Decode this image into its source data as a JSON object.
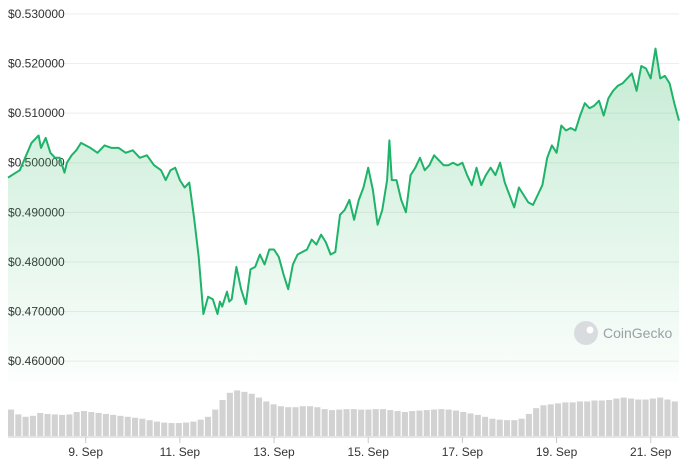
{
  "chart_data": {
    "type": "area",
    "title": "",
    "xlabel": "",
    "ylabel": "",
    "ylim": [
      0.456,
      0.532
    ],
    "grid": true,
    "y_ticks": [
      "$0.530000",
      "$0.520000",
      "$0.510000",
      "$0.500000",
      "$0.490000",
      "$0.480000",
      "$0.470000",
      "$0.460000"
    ],
    "y_tick_values": [
      0.53,
      0.52,
      0.51,
      0.5,
      0.49,
      0.48,
      0.47,
      0.46
    ],
    "x_ticks": [
      "9. Sep",
      "11. Sep",
      "13. Sep",
      "15. Sep",
      "17. Sep",
      "19. Sep",
      "21. Sep"
    ],
    "x_tick_days": [
      9,
      11,
      13,
      15,
      17,
      19,
      21
    ],
    "x_range_days": [
      7.35,
      21.6
    ],
    "series": [
      {
        "color": "#1fb36a",
        "x": [
          7.35,
          7.6,
          7.85,
          8.0,
          8.05,
          8.15,
          8.25,
          8.35,
          8.45,
          8.55,
          8.6,
          8.7,
          8.8,
          8.9,
          9.0,
          9.1,
          9.25,
          9.4,
          9.55,
          9.7,
          9.85,
          10.0,
          10.15,
          10.3,
          10.45,
          10.6,
          10.7,
          10.8,
          10.9,
          11.0,
          11.1,
          11.2,
          11.3,
          11.4,
          11.5,
          11.6,
          11.7,
          11.8,
          11.85,
          11.9,
          12.0,
          12.05,
          12.1,
          12.2,
          12.3,
          12.4,
          12.5,
          12.6,
          12.7,
          12.8,
          12.9,
          13.0,
          13.1,
          13.2,
          13.3,
          13.4,
          13.5,
          13.6,
          13.7,
          13.8,
          13.9,
          14.0,
          14.1,
          14.2,
          14.3,
          14.4,
          14.5,
          14.6,
          14.7,
          14.8,
          14.9,
          15.0,
          15.1,
          15.2,
          15.3,
          15.4,
          15.45,
          15.5,
          15.6,
          15.7,
          15.8,
          15.9,
          16.0,
          16.1,
          16.2,
          16.3,
          16.4,
          16.5,
          16.6,
          16.7,
          16.8,
          16.9,
          17.0,
          17.1,
          17.2,
          17.3,
          17.4,
          17.5,
          17.6,
          17.7,
          17.8,
          17.9,
          18.0,
          18.1,
          18.2,
          18.3,
          18.4,
          18.5,
          18.6,
          18.7,
          18.8,
          18.9,
          19.0,
          19.1,
          19.2,
          19.3,
          19.4,
          19.5,
          19.6,
          19.7,
          19.8,
          19.9,
          20.0,
          20.1,
          20.2,
          20.3,
          20.4,
          20.5,
          20.6,
          20.7,
          20.8,
          20.9,
          21.0,
          21.1,
          21.2,
          21.3,
          21.4,
          21.5,
          21.6
        ],
        "y": [
          0.497,
          0.4985,
          0.504,
          0.5055,
          0.503,
          0.505,
          0.502,
          0.501,
          0.501,
          0.498,
          0.5,
          0.5015,
          0.5025,
          0.504,
          0.5035,
          0.503,
          0.502,
          0.5035,
          0.503,
          0.503,
          0.502,
          0.5025,
          0.501,
          0.5015,
          0.4995,
          0.4985,
          0.4965,
          0.4985,
          0.499,
          0.4965,
          0.495,
          0.496,
          0.489,
          0.481,
          0.4695,
          0.473,
          0.4725,
          0.4695,
          0.472,
          0.471,
          0.474,
          0.472,
          0.4725,
          0.479,
          0.4745,
          0.4715,
          0.4785,
          0.479,
          0.4815,
          0.4795,
          0.4825,
          0.4825,
          0.481,
          0.4775,
          0.4745,
          0.4795,
          0.4815,
          0.482,
          0.4825,
          0.4845,
          0.4835,
          0.4855,
          0.484,
          0.4815,
          0.482,
          0.4895,
          0.4905,
          0.4925,
          0.4885,
          0.4925,
          0.495,
          0.499,
          0.4945,
          0.4875,
          0.4905,
          0.4965,
          0.5045,
          0.4965,
          0.4965,
          0.4925,
          0.49,
          0.4975,
          0.499,
          0.501,
          0.4985,
          0.4995,
          0.5015,
          0.5005,
          0.4995,
          0.4995,
          0.5,
          0.4995,
          0.5,
          0.4975,
          0.4955,
          0.499,
          0.4955,
          0.4975,
          0.499,
          0.4975,
          0.5,
          0.496,
          0.4935,
          0.491,
          0.495,
          0.4935,
          0.492,
          0.4915,
          0.4935,
          0.4955,
          0.501,
          0.5035,
          0.502,
          0.5075,
          0.5065,
          0.507,
          0.5065,
          0.5095,
          0.512,
          0.511,
          0.5115,
          0.5125,
          0.5095,
          0.513,
          0.5145,
          0.5155,
          0.516,
          0.517,
          0.518,
          0.5145,
          0.5195,
          0.519,
          0.517,
          0.523,
          0.517,
          0.5175,
          0.516,
          0.512,
          0.5085
        ]
      }
    ],
    "volume_label": "",
    "volume": [
      0.55,
      0.45,
      0.4,
      0.42,
      0.48,
      0.46,
      0.45,
      0.44,
      0.45,
      0.5,
      0.52,
      0.5,
      0.48,
      0.46,
      0.44,
      0.42,
      0.4,
      0.38,
      0.36,
      0.33,
      0.3,
      0.28,
      0.27,
      0.27,
      0.28,
      0.3,
      0.34,
      0.4,
      0.55,
      0.75,
      0.9,
      0.95,
      0.92,
      0.88,
      0.8,
      0.72,
      0.66,
      0.62,
      0.6,
      0.6,
      0.62,
      0.62,
      0.6,
      0.56,
      0.54,
      0.55,
      0.56,
      0.56,
      0.55,
      0.55,
      0.56,
      0.56,
      0.54,
      0.52,
      0.5,
      0.52,
      0.53,
      0.54,
      0.55,
      0.56,
      0.55,
      0.53,
      0.5,
      0.47,
      0.44,
      0.4,
      0.36,
      0.34,
      0.33,
      0.33,
      0.36,
      0.46,
      0.58,
      0.64,
      0.66,
      0.68,
      0.7,
      0.7,
      0.72,
      0.72,
      0.74,
      0.74,
      0.75,
      0.78,
      0.8,
      0.78,
      0.76,
      0.76,
      0.78,
      0.8,
      0.76,
      0.72
    ],
    "watermark": "CoinGecko",
    "legend": "none"
  }
}
